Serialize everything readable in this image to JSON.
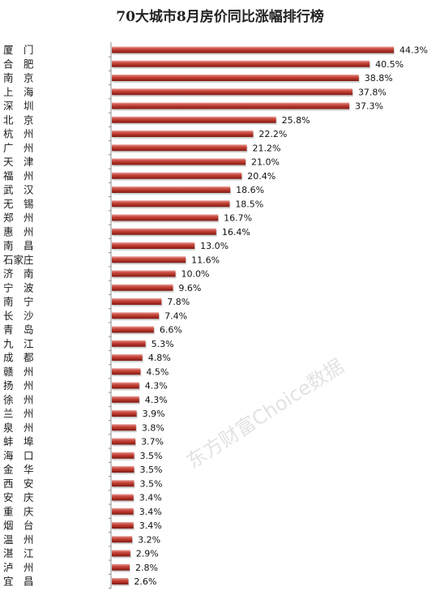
{
  "chart_data": {
    "type": "bar",
    "orientation": "horizontal",
    "title": "70大城市8月房价同比涨幅排行榜",
    "categories": [
      "厦门",
      "合肥",
      "南京",
      "上海",
      "深圳",
      "北京",
      "杭州",
      "广州",
      "天津",
      "福州",
      "武汉",
      "无锡",
      "郑州",
      "惠州",
      "南昌",
      "石家庄",
      "济南",
      "宁波",
      "南宁",
      "长沙",
      "青岛",
      "九江",
      "成都",
      "赣州",
      "扬州",
      "徐州",
      "兰州",
      "泉州",
      "蚌埠",
      "海口",
      "金华",
      "西安",
      "安庆",
      "重庆",
      "烟台",
      "温州",
      "湛江",
      "泸州",
      "宜昌"
    ],
    "category_display": [
      "厦　门",
      "合　肥",
      "南　京",
      "上　海",
      "深　圳",
      "北　京",
      "杭　州",
      "广　州",
      "天　津",
      "福　州",
      "武　汉",
      "无　锡",
      "郑　州",
      "惠　州",
      "南　昌",
      "石家庄",
      "济　南",
      "宁　波",
      "南　宁",
      "长　沙",
      "青　岛",
      "九　江",
      "成　都",
      "赣　州",
      "扬　州",
      "徐　州",
      "兰　州",
      "泉　州",
      "蚌　埠",
      "海　口",
      "金　华",
      "西　安",
      "安　庆",
      "重　庆",
      "烟　台",
      "温　州",
      "湛　江",
      "泸　州",
      "宜　昌"
    ],
    "values": [
      44.3,
      40.5,
      38.8,
      37.8,
      37.3,
      25.8,
      22.2,
      21.2,
      21.0,
      20.4,
      18.6,
      18.5,
      16.7,
      16.4,
      13.0,
      11.6,
      10.0,
      9.6,
      7.8,
      7.4,
      6.6,
      5.3,
      4.8,
      4.5,
      4.3,
      4.3,
      3.9,
      3.8,
      3.7,
      3.5,
      3.5,
      3.5,
      3.4,
      3.4,
      3.4,
      3.2,
      2.9,
      2.8,
      2.6
    ],
    "value_labels": [
      "44.3%",
      "40.5%",
      "38.8%",
      "37.8%",
      "37.3%",
      "25.8%",
      "22.2%",
      "21.2%",
      "21.0%",
      "20.4%",
      "18.6%",
      "18.5%",
      "16.7%",
      "16.4%",
      "13.0%",
      "11.6%",
      "10.0%",
      "9.6%",
      "7.8%",
      "7.4%",
      "6.6%",
      "5.3%",
      "4.8%",
      "4.5%",
      "4.3%",
      "4.3%",
      "3.9%",
      "3.8%",
      "3.7%",
      "3.5%",
      "3.5%",
      "3.5%",
      "3.4%",
      "3.4%",
      "3.4%",
      "3.2%",
      "2.9%",
      "2.8%",
      "2.6%"
    ],
    "unit": "%",
    "grid": false,
    "legend": "none",
    "bar_color": "#c0392b",
    "watermark": "东方财富Choice数据"
  }
}
